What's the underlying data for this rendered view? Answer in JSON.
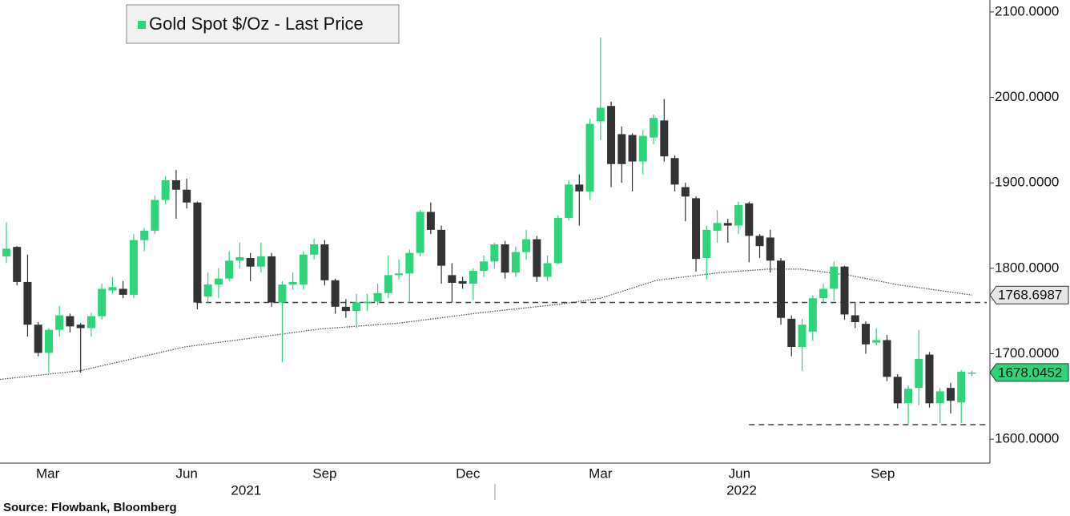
{
  "chart_data": {
    "type": "candlestick",
    "series_name": "Gold Spot $/Oz - Last Price",
    "up_color": "#2ed47a",
    "down_color": "#333333",
    "candles": {
      "open": [
        1814,
        1825,
        1784,
        1734,
        1701,
        1728,
        1744,
        1734,
        1730,
        1744,
        1774,
        1776,
        1769,
        1833,
        1844,
        1880,
        1903,
        1892,
        1877,
        1767,
        1781,
        1788,
        1809,
        1812,
        1802,
        1814,
        1760,
        1781,
        1781,
        1816,
        1828,
        1786,
        1755,
        1750,
        1759,
        1761,
        1771,
        1792,
        1794,
        1818,
        1866,
        1845,
        1792,
        1785,
        1782,
        1797,
        1808,
        1828,
        1795,
        1819,
        1834,
        1790,
        1806,
        1859,
        1898,
        1890,
        1972,
        1990,
        1957,
        1956,
        1925,
        1953,
        1973,
        1929,
        1895,
        1882,
        1812,
        1844,
        1853,
        1850,
        1876,
        1838,
        1836,
        1809,
        1741,
        1708,
        1726,
        1765,
        1776,
        1802,
        1745,
        1735,
        1713,
        1716,
        1673,
        1642,
        1660,
        1699,
        1642,
        1660,
        1643,
        1677
      ],
      "high": [
        1854,
        1826,
        1816,
        1737,
        1730,
        1756,
        1747,
        1736,
        1748,
        1782,
        1790,
        1785,
        1840,
        1847,
        1885,
        1908,
        1915,
        1905,
        1878,
        1795,
        1800,
        1820,
        1830,
        1818,
        1830,
        1818,
        1785,
        1795,
        1820,
        1835,
        1833,
        1788,
        1764,
        1770,
        1770,
        1782,
        1815,
        1810,
        1822,
        1868,
        1877,
        1850,
        1806,
        1790,
        1800,
        1815,
        1830,
        1832,
        1825,
        1845,
        1838,
        1815,
        1862,
        1903,
        1910,
        1975,
        2070,
        1995,
        1966,
        1958,
        1962,
        1980,
        1998,
        1932,
        1900,
        1884,
        1850,
        1868,
        1858,
        1878,
        1878,
        1840,
        1845,
        1812,
        1745,
        1741,
        1768,
        1782,
        1808,
        1803,
        1760,
        1738,
        1730,
        1722,
        1676,
        1663,
        1728,
        1702,
        1660,
        1666,
        1681,
        1680
      ],
      "low": [
        1806,
        1780,
        1720,
        1697,
        1678,
        1720,
        1725,
        1678,
        1720,
        1740,
        1770,
        1765,
        1765,
        1820,
        1840,
        1875,
        1858,
        1870,
        1752,
        1760,
        1765,
        1785,
        1800,
        1785,
        1795,
        1755,
        1690,
        1775,
        1775,
        1810,
        1780,
        1747,
        1742,
        1730,
        1750,
        1757,
        1765,
        1787,
        1760,
        1814,
        1840,
        1782,
        1760,
        1776,
        1763,
        1790,
        1800,
        1788,
        1790,
        1810,
        1784,
        1785,
        1805,
        1856,
        1850,
        1880,
        1950,
        1895,
        1900,
        1890,
        1910,
        1945,
        1925,
        1890,
        1855,
        1796,
        1787,
        1830,
        1830,
        1840,
        1807,
        1812,
        1795,
        1734,
        1697,
        1680,
        1715,
        1760,
        1762,
        1740,
        1730,
        1700,
        1710,
        1668,
        1636,
        1618,
        1640,
        1637,
        1619,
        1630,
        1619,
        1674
      ],
      "close": [
        1823,
        1784,
        1734,
        1701,
        1728,
        1745,
        1732,
        1730,
        1744,
        1776,
        1778,
        1769,
        1833,
        1844,
        1880,
        1903,
        1892,
        1877,
        1760,
        1781,
        1788,
        1809,
        1813,
        1802,
        1814,
        1760,
        1781,
        1784,
        1816,
        1828,
        1786,
        1755,
        1750,
        1760,
        1761,
        1771,
        1792,
        1794,
        1818,
        1866,
        1845,
        1803,
        1783,
        1782,
        1797,
        1808,
        1828,
        1795,
        1819,
        1834,
        1790,
        1806,
        1859,
        1898,
        1890,
        1969,
        1988,
        1922,
        1922,
        1925,
        1955,
        1976,
        1931,
        1898,
        1884,
        1811,
        1845,
        1853,
        1850,
        1874,
        1838,
        1826,
        1809,
        1742,
        1708,
        1734,
        1765,
        1776,
        1802,
        1746,
        1737,
        1711,
        1716,
        1673,
        1642,
        1659,
        1694,
        1642,
        1656,
        1645,
        1679,
        1678.0452
      ]
    },
    "ma": {
      "color": "#555555",
      "x": [
        -0.6,
        6.9,
        16.8,
        29.6,
        37.1,
        44.7,
        52.2,
        56.0,
        61.3,
        67.3,
        71.8,
        74.9,
        79.4,
        83.9,
        91
      ],
      "values": [
        1670,
        1680,
        1708,
        1729,
        1736,
        1748,
        1758,
        1765,
        1786,
        1795,
        1799,
        1799,
        1792,
        1781,
        1768.6987
      ]
    },
    "hlines": [
      {
        "value": 1760,
        "from": 17.9
      },
      {
        "value": 1617,
        "from": 70
      }
    ],
    "xlim": [
      -0.6,
      92.7
    ],
    "ylim": [
      1572,
      2114
    ],
    "yticks": [
      {
        "value": 2100,
        "label": "2100.0000"
      },
      {
        "value": 2000,
        "label": "2000.0000"
      },
      {
        "value": 1900,
        "label": "1900.0000"
      },
      {
        "value": 1800,
        "label": "1800.0000"
      },
      {
        "value": 1700,
        "label": "1700.0000"
      },
      {
        "value": 1600,
        "label": "1600.0000"
      }
    ],
    "xticks": [
      {
        "value": 3.9,
        "label": "Mar"
      },
      {
        "value": 17.0,
        "label": "Jun"
      },
      {
        "value": 30.0,
        "label": "Sep"
      },
      {
        "value": 43.5,
        "label": "Dec"
      },
      {
        "value": 56.0,
        "label": "Mar"
      },
      {
        "value": 69.1,
        "label": "Jun"
      },
      {
        "value": 82.6,
        "label": "Sep"
      }
    ],
    "year_labels": [
      {
        "value": 22.6,
        "label": "2021"
      },
      {
        "value": 69.3,
        "label": "2022"
      }
    ],
    "source": "Source: Flowbank, Bloomberg"
  }
}
